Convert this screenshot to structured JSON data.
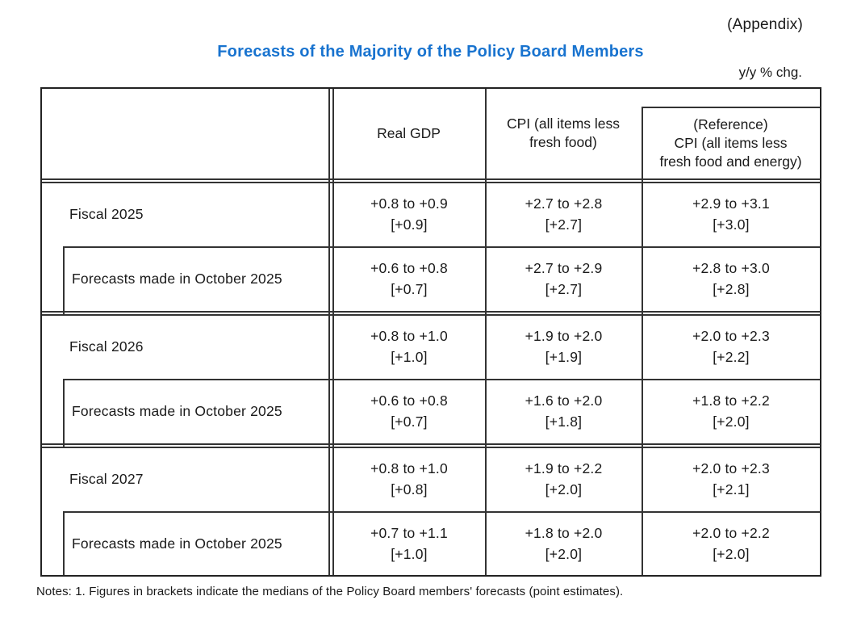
{
  "page": {
    "appendix": "(Appendix)",
    "title": "Forecasts of the Majority of the Policy Board Members",
    "unit": "y/y % chg.",
    "notes": "Notes: 1. Figures in brackets indicate the medians of the Policy Board members' forecasts (point estimates).",
    "title_color": "#1873cf",
    "line_color": "#333333"
  },
  "table": {
    "header": {
      "real_gdp": "Real GDP",
      "cpi": "CPI (all items less\nfresh food)",
      "cpi_ref": "(Reference)\nCPI (all items less\nfresh food and energy)"
    },
    "groups": [
      {
        "label": "Fiscal 2025",
        "cells": [
          {
            "range": "+0.8 to +0.9",
            "median": "[+0.9]"
          },
          {
            "range": "+2.7 to +2.8",
            "median": "[+2.7]"
          },
          {
            "range": "+2.9 to +3.1",
            "median": "[+3.0]"
          }
        ],
        "sub_label": "Forecasts made in October 2025",
        "sub_cells": [
          {
            "range": "+0.6 to +0.8",
            "median": "[+0.7]"
          },
          {
            "range": "+2.7 to +2.9",
            "median": "[+2.7]"
          },
          {
            "range": "+2.8 to +3.0",
            "median": "[+2.8]"
          }
        ]
      },
      {
        "label": "Fiscal 2026",
        "cells": [
          {
            "range": "+0.8 to +1.0",
            "median": "[+1.0]"
          },
          {
            "range": "+1.9 to +2.0",
            "median": "[+1.9]"
          },
          {
            "range": "+2.0 to +2.3",
            "median": "[+2.2]"
          }
        ],
        "sub_label": "Forecasts made in October 2025",
        "sub_cells": [
          {
            "range": "+0.6 to +0.8",
            "median": "[+0.7]"
          },
          {
            "range": "+1.6 to +2.0",
            "median": "[+1.8]"
          },
          {
            "range": "+1.8 to +2.2",
            "median": "[+2.0]"
          }
        ]
      },
      {
        "label": "Fiscal 2027",
        "cells": [
          {
            "range": "+0.8 to +1.0",
            "median": "[+0.8]"
          },
          {
            "range": "+1.9 to +2.2",
            "median": "[+2.0]"
          },
          {
            "range": "+2.0 to +2.3",
            "median": "[+2.1]"
          }
        ],
        "sub_label": "Forecasts made in October 2025",
        "sub_cells": [
          {
            "range": "+0.7 to +1.1",
            "median": "[+1.0]"
          },
          {
            "range": "+1.8 to +2.0",
            "median": "[+2.0]"
          },
          {
            "range": "+2.0 to +2.2",
            "median": "[+2.0]"
          }
        ]
      }
    ]
  }
}
